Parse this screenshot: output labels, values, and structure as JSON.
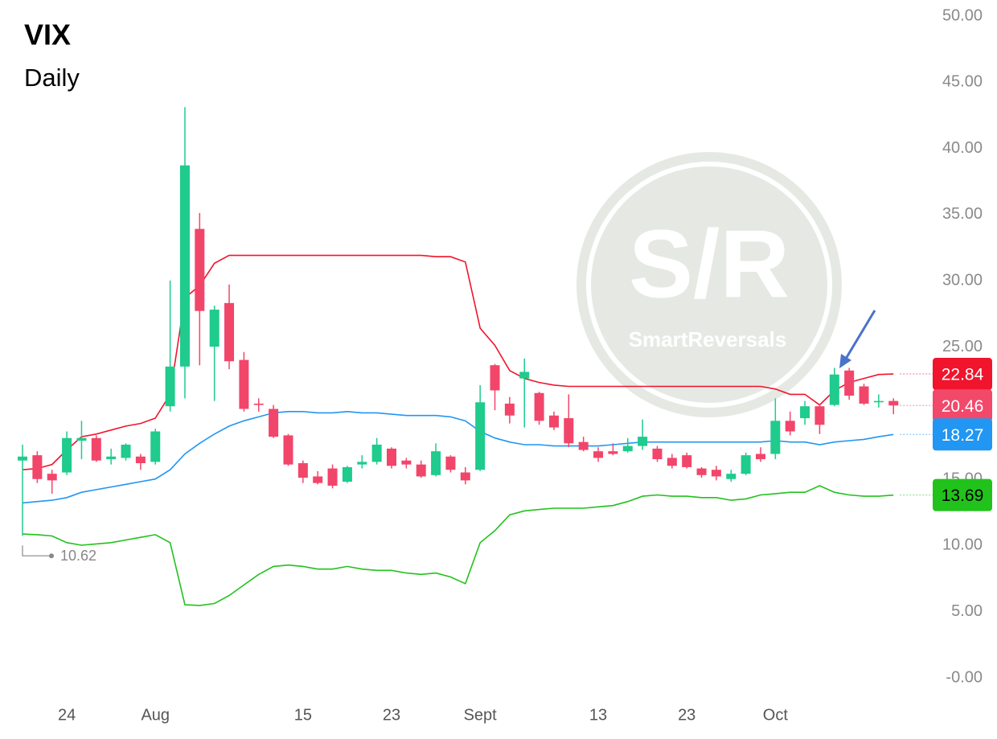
{
  "chart_data": {
    "type": "candlestick",
    "title": "VIX",
    "subtitle": "Daily",
    "watermark": {
      "logo": "S/R",
      "brand": "SmartReversals"
    },
    "categories": [
      null,
      null,
      null,
      "24",
      null,
      null,
      null,
      null,
      null,
      "Aug",
      null,
      null,
      null,
      null,
      null,
      null,
      null,
      null,
      null,
      "15",
      null,
      null,
      null,
      null,
      null,
      "23",
      null,
      null,
      null,
      null,
      null,
      "Sept",
      null,
      null,
      null,
      null,
      null,
      null,
      null,
      "13",
      null,
      null,
      null,
      null,
      null,
      "23",
      null,
      null,
      null,
      null,
      null,
      "Oct",
      null,
      null,
      null,
      null,
      null,
      null,
      null,
      null
    ],
    "open": [
      16.3,
      16.7,
      15.3,
      15.4,
      17.8,
      18.0,
      16.4,
      16.5,
      16.6,
      16.2,
      20.4,
      23.4,
      33.8,
      24.9,
      28.2,
      23.9,
      20.6,
      20.2,
      18.2,
      16.1,
      15.1,
      15.7,
      14.7,
      16.0,
      16.2,
      17.2,
      16.3,
      16.0,
      15.2,
      16.6,
      15.4,
      15.6,
      23.5,
      20.6,
      22.5,
      21.4,
      19.7,
      19.5,
      17.7,
      17.0,
      17.0,
      17.0,
      17.4,
      17.2,
      16.5,
      16.7,
      15.7,
      15.6,
      14.9,
      15.3,
      16.8,
      16.8,
      19.3,
      19.5,
      20.4,
      20.5,
      23.1,
      21.9,
      20.7,
      20.8
    ],
    "high": [
      17.5,
      17.0,
      15.6,
      18.5,
      19.3,
      18.2,
      17.2,
      17.6,
      16.8,
      18.7,
      29.9,
      43.0,
      35.0,
      28.0,
      29.6,
      24.5,
      21.0,
      20.5,
      18.3,
      16.3,
      15.5,
      16.0,
      15.9,
      16.7,
      18.0,
      17.3,
      16.5,
      16.3,
      17.6,
      16.7,
      15.8,
      22.0,
      23.6,
      21.1,
      24.0,
      21.5,
      20.0,
      21.3,
      18.1,
      17.3,
      17.6,
      18.0,
      19.4,
      17.4,
      16.8,
      16.9,
      15.8,
      15.9,
      15.6,
      16.9,
      17.3,
      21.0,
      20.0,
      20.8,
      20.6,
      23.3,
      23.3,
      22.1,
      21.3,
      21.0
    ],
    "low": [
      10.62,
      14.6,
      13.8,
      15.2,
      16.4,
      16.2,
      16.0,
      16.3,
      15.6,
      16.0,
      20.0,
      21.0,
      23.5,
      20.8,
      23.2,
      20.0,
      20.0,
      18.0,
      15.9,
      14.6,
      14.5,
      14.2,
      14.6,
      15.7,
      16.0,
      15.7,
      15.7,
      15.0,
      15.1,
      15.4,
      14.5,
      15.5,
      20.1,
      19.1,
      18.8,
      19.0,
      18.6,
      17.3,
      17.0,
      16.2,
      16.7,
      16.9,
      17.1,
      16.2,
      15.7,
      15.7,
      15.0,
      14.8,
      14.7,
      15.2,
      16.2,
      16.4,
      18.2,
      19.0,
      18.3,
      20.4,
      20.9,
      20.5,
      20.3,
      19.8
    ],
    "close": [
      16.6,
      14.9,
      14.8,
      18.0,
      18.0,
      16.3,
      16.6,
      17.5,
      16.1,
      18.5,
      23.4,
      38.6,
      27.6,
      27.7,
      23.8,
      20.2,
      20.5,
      18.1,
      16.0,
      15.0,
      14.6,
      14.4,
      15.8,
      16.2,
      17.5,
      15.9,
      16.0,
      15.1,
      17.0,
      15.6,
      14.8,
      20.7,
      21.6,
      19.7,
      23.0,
      19.3,
      18.8,
      17.6,
      17.1,
      16.5,
      16.8,
      17.4,
      18.1,
      16.4,
      15.9,
      15.8,
      15.2,
      15.1,
      15.3,
      16.7,
      16.4,
      19.3,
      18.5,
      20.4,
      19.0,
      22.8,
      21.2,
      20.6,
      20.8,
      20.46
    ],
    "up_color": "#1fcb8d",
    "down_color": "#f2456a",
    "last_price_color": "#f2496b",
    "series": [
      {
        "name": "upper",
        "color": "#f0142c",
        "values": [
          15.6,
          15.7,
          16.0,
          17.1,
          18.1,
          18.3,
          18.6,
          18.9,
          19.1,
          19.5,
          21.3,
          28.6,
          29.5,
          31.2,
          31.8,
          31.8,
          31.8,
          31.8,
          31.8,
          31.8,
          31.8,
          31.8,
          31.8,
          31.8,
          31.8,
          31.8,
          31.8,
          31.8,
          31.7,
          31.7,
          31.3,
          26.3,
          25.0,
          23.1,
          22.5,
          22.2,
          22.0,
          21.9,
          21.9,
          21.9,
          21.9,
          21.9,
          21.9,
          21.9,
          21.9,
          21.9,
          21.9,
          21.9,
          21.9,
          21.9,
          21.9,
          21.7,
          21.3,
          21.3,
          20.5,
          21.6,
          22.2,
          22.5,
          22.8,
          22.84
        ]
      },
      {
        "name": "middle",
        "color": "#2196f3",
        "values": [
          13.1,
          13.2,
          13.3,
          13.5,
          13.9,
          14.1,
          14.3,
          14.5,
          14.7,
          14.9,
          15.6,
          16.8,
          17.6,
          18.3,
          18.9,
          19.3,
          19.6,
          19.9,
          20.0,
          20.0,
          19.9,
          19.9,
          20.0,
          19.9,
          19.9,
          19.8,
          19.7,
          19.7,
          19.7,
          19.6,
          19.3,
          18.5,
          18.0,
          17.7,
          17.5,
          17.5,
          17.4,
          17.4,
          17.4,
          17.4,
          17.5,
          17.6,
          17.7,
          17.7,
          17.7,
          17.7,
          17.7,
          17.7,
          17.7,
          17.7,
          17.7,
          17.8,
          17.7,
          17.7,
          17.5,
          17.7,
          17.8,
          17.9,
          18.1,
          18.27
        ]
      },
      {
        "name": "lower",
        "color": "#22c21c",
        "values": [
          10.75,
          10.7,
          10.6,
          10.1,
          9.9,
          10.0,
          10.1,
          10.3,
          10.5,
          10.7,
          10.1,
          5.4,
          5.35,
          5.5,
          6.1,
          6.9,
          7.7,
          8.3,
          8.4,
          8.3,
          8.1,
          8.1,
          8.3,
          8.1,
          8.0,
          8.0,
          7.8,
          7.7,
          7.8,
          7.5,
          7.0,
          10.1,
          11.0,
          12.2,
          12.5,
          12.6,
          12.7,
          12.7,
          12.7,
          12.8,
          12.9,
          13.2,
          13.6,
          13.7,
          13.6,
          13.6,
          13.5,
          13.5,
          13.3,
          13.4,
          13.7,
          13.8,
          13.9,
          13.9,
          14.4,
          13.9,
          13.7,
          13.6,
          13.6,
          13.69
        ]
      }
    ],
    "ylim": [
      0,
      50
    ],
    "yticks": [
      {
        "value": 0,
        "label": "-0.00"
      },
      {
        "value": 5,
        "label": "5.00"
      },
      {
        "value": 10,
        "label": "10.00"
      },
      {
        "value": 15,
        "label": "15.00"
      },
      {
        "value": 20,
        "label": "20.00"
      },
      {
        "value": 25,
        "label": "25.00"
      },
      {
        "value": 30,
        "label": "30.00"
      },
      {
        "value": 35,
        "label": "35.00"
      },
      {
        "value": 40,
        "label": "40.00"
      },
      {
        "value": 45,
        "label": "45.00"
      },
      {
        "value": 50,
        "label": "50.00"
      }
    ]
  }
}
